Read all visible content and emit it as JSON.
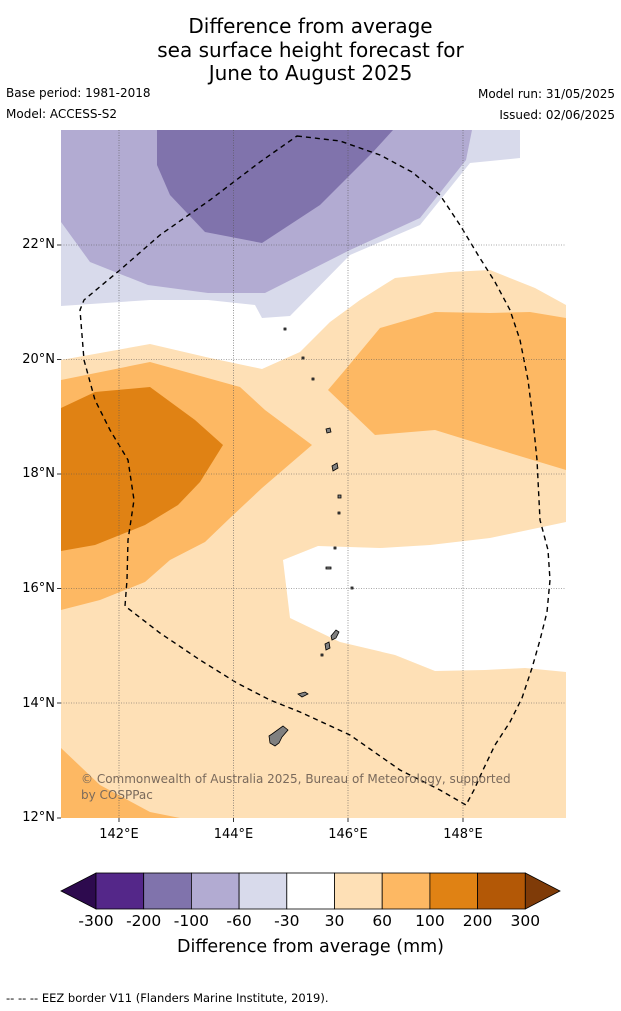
{
  "title": {
    "line1": "Difference from average",
    "line2": "sea surface height forecast for",
    "line3": "June to August 2025"
  },
  "header": {
    "base_period": "Base period: 1981-2018",
    "model": "Model: ACCESS-S2",
    "model_run": "Model run: 31/05/2025",
    "issued": "Issued: 02/06/2025"
  },
  "map": {
    "lat_labels": [
      "22°N",
      "20°N",
      "18°N",
      "16°N",
      "14°N",
      "12°N"
    ],
    "lon_labels": [
      "142°E",
      "144°E",
      "146°E",
      "148°E"
    ],
    "border_style": "dashed",
    "land_color": "#808080"
  },
  "colorbar": {
    "tick_labels": [
      "-300",
      "-200",
      "-100",
      "-60",
      "-30",
      "30",
      "60",
      "100",
      "200",
      "300"
    ],
    "colors": [
      "#2d0a4e",
      "#542789",
      "#8073ac",
      "#b2abd2",
      "#d8daeb",
      "#ffffff",
      "#fee0b6",
      "#fdb863",
      "#e08214",
      "#b35806",
      "#7f3b08"
    ],
    "label": "Difference from average (mm)"
  },
  "copyright": "© Commonwealth of Australia 2025, Bureau of Meteorology, supported by COSPPac",
  "footnote": "--  --  -- EEZ border V11 (Flanders Marine Institute, 2019)."
}
